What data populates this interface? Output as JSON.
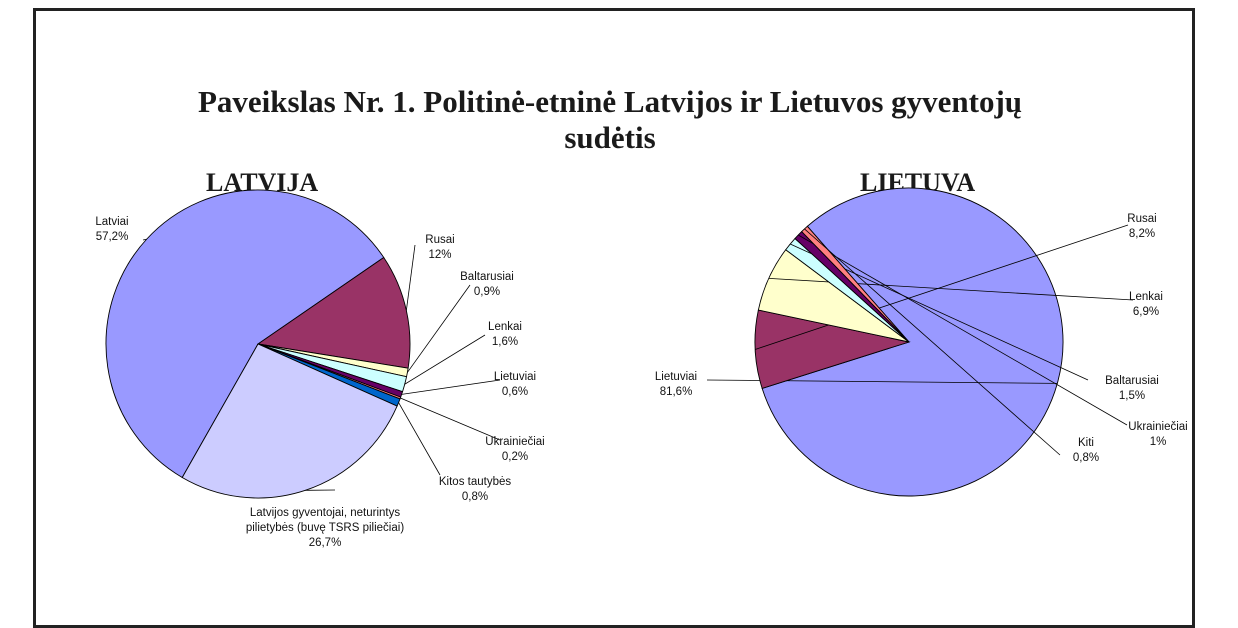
{
  "title_line1": "Paveikslas Nr. 1. Politinė-etninė Latvijos ir Lietuvos gyventojų",
  "title_line2": "sudėtis",
  "chart_data": [
    {
      "type": "pie",
      "title": "LATVIJA",
      "slices": [
        {
          "label": [
            "Latviai",
            "57,2%"
          ],
          "value": 57.2,
          "color": "#9999ff"
        },
        {
          "label": [
            "Rusai",
            "12%"
          ],
          "value": 12.0,
          "color": "#993366"
        },
        {
          "label": [
            "Baltarusiai",
            "0,9%"
          ],
          "value": 0.9,
          "color": "#ffffcc"
        },
        {
          "label": [
            "Lenkai",
            "1,6%"
          ],
          "value": 1.6,
          "color": "#ccffff"
        },
        {
          "label": [
            "Lietuviai",
            "0,6%"
          ],
          "value": 0.6,
          "color": "#660066"
        },
        {
          "label": [
            "Ukrainiečiai",
            "0,2%"
          ],
          "value": 0.2,
          "color": "#ff8080"
        },
        {
          "label": [
            "Kitos tautybės",
            "0,8%"
          ],
          "value": 0.8,
          "color": "#0066cc"
        },
        {
          "label": [
            "Latvijos gyventojai, neturintys",
            "pilietybės (buvę TSRS piliečiai)",
            "26,7%"
          ],
          "value": 26.7,
          "color": "#ccccff"
        }
      ]
    },
    {
      "type": "pie",
      "title": "LIETUVA",
      "slices": [
        {
          "label": [
            "Lietuviai",
            "81,6%"
          ],
          "value": 81.6,
          "color": "#9999ff"
        },
        {
          "label": [
            "Rusai",
            "8,2%"
          ],
          "value": 8.2,
          "color": "#993366"
        },
        {
          "label": [
            "Lenkai",
            "6,9%"
          ],
          "value": 6.9,
          "color": "#ffffcc"
        },
        {
          "label": [
            "Baltarusiai",
            "1,5%"
          ],
          "value": 1.5,
          "color": "#ccffff"
        },
        {
          "label": [
            "Ukrainiečiai",
            "1%"
          ],
          "value": 1.0,
          "color": "#660066"
        },
        {
          "label": [
            "Kiti",
            "0,8%"
          ],
          "value": 0.8,
          "color": "#ff8080"
        }
      ]
    }
  ]
}
